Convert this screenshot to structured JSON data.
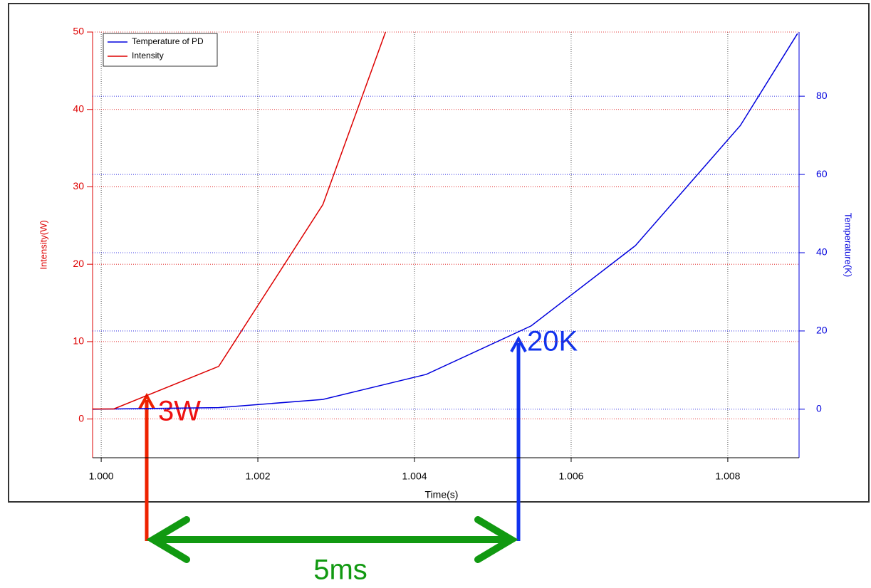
{
  "chart_data": {
    "type": "line",
    "x_label": "Time(s)",
    "y_label": "Intensity(W)",
    "y2_label": "Temperature(K)",
    "xlim": [
      0.99989,
      1.00891
    ],
    "xticks": [
      {
        "value": 1.0,
        "label": "1.000"
      },
      {
        "value": 1.002,
        "label": "1.002"
      },
      {
        "value": 1.004,
        "label": "1.004"
      },
      {
        "value": 1.006,
        "label": "1.006"
      },
      {
        "value": 1.008,
        "label": "1.008"
      }
    ],
    "ylim": [
      -5,
      50
    ],
    "yticks": [
      0,
      10,
      20,
      30,
      40,
      50
    ],
    "y2lim": [
      -12.4,
      96.4
    ],
    "y2ticks": [
      0,
      20,
      40,
      60,
      80
    ],
    "grid": true,
    "legend": "upper left",
    "series": [
      {
        "name": "Temperature of PD",
        "color": "#0000dd",
        "axis": "y2",
        "x": [
          0.99989,
          1.0015,
          1.00283,
          1.00415,
          1.00549,
          1.00682,
          1.00816,
          1.00889
        ],
        "values": [
          0,
          0.4,
          2.5,
          8.9,
          21.3,
          41.8,
          72.5,
          96
        ]
      },
      {
        "name": "Intensity",
        "color": "#dd0000",
        "axis": "y",
        "x": [
          0.99989,
          1.00016,
          1.0015,
          1.00283,
          1.00363
        ],
        "values": [
          1.3,
          1.3,
          6.8,
          27.7,
          50
        ]
      }
    ],
    "annotations": [
      "3W",
      "20K",
      "5ms"
    ]
  }
}
